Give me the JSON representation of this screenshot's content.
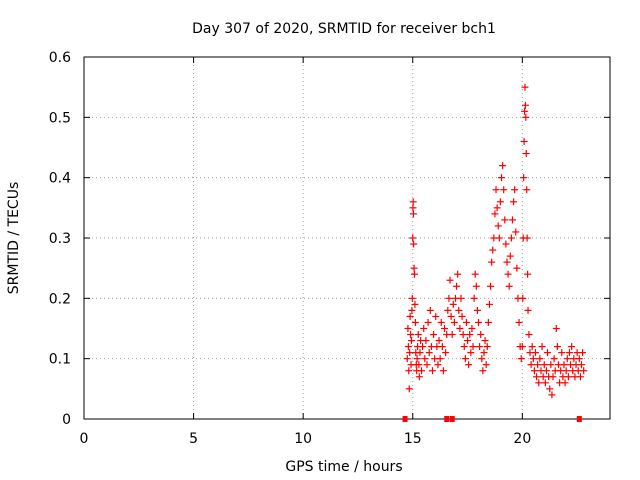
{
  "chart_data": {
    "type": "scatter",
    "title": "Day 307 of 2020, SRMTID for receiver bch1",
    "xlabel": "GPS time / hours",
    "ylabel": "SRMTID / TECUs",
    "xlim": [
      0,
      24
    ],
    "ylim": [
      0,
      0.6
    ],
    "x_ticks": [
      0,
      5,
      10,
      15,
      20
    ],
    "x_tick_labels": [
      "0",
      "5",
      "10",
      "15",
      "20"
    ],
    "y_ticks": [
      0,
      0.1,
      0.2,
      0.3,
      0.4,
      0.5,
      0.6
    ],
    "y_tick_labels": [
      "0",
      "0.1",
      "0.2",
      "0.3",
      "0.4",
      "0.5",
      "0.6"
    ],
    "grid": true,
    "marker": "+",
    "series": [
      {
        "name": "SRMTID",
        "color": "#ff0000",
        "points": [
          [
            14.75,
            0.1
          ],
          [
            14.78,
            0.15
          ],
          [
            14.8,
            0.12
          ],
          [
            14.82,
            0.08
          ],
          [
            14.84,
            0.05
          ],
          [
            14.86,
            0.11
          ],
          [
            14.88,
            0.17
          ],
          [
            14.9,
            0.14
          ],
          [
            14.92,
            0.09
          ],
          [
            14.94,
            0.13
          ],
          [
            14.96,
            0.18
          ],
          [
            14.98,
            0.2
          ],
          [
            15.0,
            0.3
          ],
          [
            15.01,
            0.35
          ],
          [
            15.02,
            0.36
          ],
          [
            15.03,
            0.34
          ],
          [
            15.04,
            0.29
          ],
          [
            15.06,
            0.25
          ],
          [
            15.08,
            0.24
          ],
          [
            15.1,
            0.19
          ],
          [
            15.12,
            0.16
          ],
          [
            15.14,
            0.11
          ],
          [
            15.16,
            0.09
          ],
          [
            15.18,
            0.08
          ],
          [
            15.2,
            0.1
          ],
          [
            15.22,
            0.12
          ],
          [
            15.25,
            0.14
          ],
          [
            15.28,
            0.09
          ],
          [
            15.3,
            0.07
          ],
          [
            15.33,
            0.11
          ],
          [
            15.36,
            0.13
          ],
          [
            15.4,
            0.08
          ],
          [
            15.45,
            0.12
          ],
          [
            15.5,
            0.15
          ],
          [
            15.55,
            0.1
          ],
          [
            15.6,
            0.13
          ],
          [
            15.65,
            0.09
          ],
          [
            15.7,
            0.16
          ],
          [
            15.75,
            0.11
          ],
          [
            15.8,
            0.18
          ],
          [
            15.85,
            0.12
          ],
          [
            15.9,
            0.08
          ],
          [
            15.95,
            0.14
          ],
          [
            16.0,
            0.1
          ],
          [
            16.05,
            0.17
          ],
          [
            16.1,
            0.12
          ],
          [
            16.15,
            0.09
          ],
          [
            16.2,
            0.13
          ],
          [
            16.25,
            0.1
          ],
          [
            16.3,
            0.16
          ],
          [
            16.35,
            0.12
          ],
          [
            16.4,
            0.08
          ],
          [
            16.45,
            0.15
          ],
          [
            16.5,
            0.11
          ],
          [
            16.55,
            0.14
          ],
          [
            16.6,
            0.18
          ],
          [
            16.65,
            0.2
          ],
          [
            16.7,
            0.23
          ],
          [
            16.75,
            0.17
          ],
          [
            16.8,
            0.14
          ],
          [
            16.85,
            0.19
          ],
          [
            16.9,
            0.16
          ],
          [
            16.95,
            0.2
          ],
          [
            17.0,
            0.22
          ],
          [
            17.05,
            0.24
          ],
          [
            17.1,
            0.18
          ],
          [
            17.15,
            0.15
          ],
          [
            17.2,
            0.2
          ],
          [
            17.25,
            0.17
          ],
          [
            17.3,
            0.14
          ],
          [
            17.35,
            0.12
          ],
          [
            17.4,
            0.1
          ],
          [
            17.45,
            0.16
          ],
          [
            17.5,
            0.13
          ],
          [
            17.55,
            0.09
          ],
          [
            17.6,
            0.14
          ],
          [
            17.65,
            0.11
          ],
          [
            17.7,
            0.15
          ],
          [
            17.75,
            0.12
          ],
          [
            17.8,
            0.2
          ],
          [
            17.85,
            0.24
          ],
          [
            17.9,
            0.22
          ],
          [
            17.95,
            0.18
          ],
          [
            18.0,
            0.16
          ],
          [
            18.05,
            0.12
          ],
          [
            18.1,
            0.14
          ],
          [
            18.15,
            0.1
          ],
          [
            18.2,
            0.08
          ],
          [
            18.25,
            0.11
          ],
          [
            18.3,
            0.13
          ],
          [
            18.35,
            0.09
          ],
          [
            18.4,
            0.12
          ],
          [
            18.45,
            0.16
          ],
          [
            18.5,
            0.19
          ],
          [
            18.55,
            0.22
          ],
          [
            18.6,
            0.26
          ],
          [
            18.65,
            0.28
          ],
          [
            18.7,
            0.3
          ],
          [
            18.75,
            0.34
          ],
          [
            18.8,
            0.38
          ],
          [
            18.85,
            0.35
          ],
          [
            18.9,
            0.32
          ],
          [
            18.95,
            0.3
          ],
          [
            19.0,
            0.36
          ],
          [
            19.05,
            0.4
          ],
          [
            19.1,
            0.42
          ],
          [
            19.15,
            0.38
          ],
          [
            19.2,
            0.33
          ],
          [
            19.25,
            0.29
          ],
          [
            19.3,
            0.26
          ],
          [
            19.35,
            0.24
          ],
          [
            19.4,
            0.22
          ],
          [
            19.45,
            0.27
          ],
          [
            19.5,
            0.3
          ],
          [
            19.55,
            0.33
          ],
          [
            19.6,
            0.36
          ],
          [
            19.65,
            0.38
          ],
          [
            19.7,
            0.31
          ],
          [
            19.75,
            0.25
          ],
          [
            19.8,
            0.2
          ],
          [
            19.85,
            0.16
          ],
          [
            19.9,
            0.12
          ],
          [
            19.95,
            0.1
          ],
          [
            20.0,
            0.12
          ],
          [
            20.02,
            0.2
          ],
          [
            20.04,
            0.3
          ],
          [
            20.06,
            0.4
          ],
          [
            20.08,
            0.46
          ],
          [
            20.1,
            0.51
          ],
          [
            20.12,
            0.55
          ],
          [
            20.14,
            0.52
          ],
          [
            20.16,
            0.5
          ],
          [
            20.18,
            0.44
          ],
          [
            20.2,
            0.38
          ],
          [
            20.22,
            0.3
          ],
          [
            20.24,
            0.24
          ],
          [
            20.26,
            0.18
          ],
          [
            20.3,
            0.14
          ],
          [
            20.35,
            0.11
          ],
          [
            20.4,
            0.09
          ],
          [
            20.45,
            0.12
          ],
          [
            20.5,
            0.1
          ],
          [
            20.55,
            0.08
          ],
          [
            20.6,
            0.11
          ],
          [
            20.65,
            0.07
          ],
          [
            20.7,
            0.09
          ],
          [
            20.75,
            0.06
          ],
          [
            20.8,
            0.1
          ],
          [
            20.85,
            0.08
          ],
          [
            20.9,
            0.12
          ],
          [
            20.95,
            0.07
          ],
          [
            21.0,
            0.09
          ],
          [
            21.05,
            0.06
          ],
          [
            21.1,
            0.08
          ],
          [
            21.15,
            0.11
          ],
          [
            21.2,
            0.07
          ],
          [
            21.25,
            0.05
          ],
          [
            21.3,
            0.09
          ],
          [
            21.35,
            0.04
          ],
          [
            21.4,
            0.07
          ],
          [
            21.45,
            0.1
          ],
          [
            21.5,
            0.08
          ],
          [
            21.55,
            0.15
          ],
          [
            21.6,
            0.12
          ],
          [
            21.65,
            0.09
          ],
          [
            21.7,
            0.06
          ],
          [
            21.75,
            0.08
          ],
          [
            21.8,
            0.11
          ],
          [
            21.85,
            0.07
          ],
          [
            21.9,
            0.09
          ],
          [
            21.95,
            0.06
          ],
          [
            22.0,
            0.08
          ],
          [
            22.05,
            0.1
          ],
          [
            22.1,
            0.07
          ],
          [
            22.15,
            0.11
          ],
          [
            22.2,
            0.09
          ],
          [
            22.25,
            0.12
          ],
          [
            22.3,
            0.08
          ],
          [
            22.35,
            0.1
          ],
          [
            22.4,
            0.07
          ],
          [
            22.45,
            0.09
          ],
          [
            22.5,
            0.11
          ],
          [
            22.55,
            0.08
          ],
          [
            22.6,
            0.1
          ],
          [
            22.65,
            0.07
          ],
          [
            22.7,
            0.09
          ],
          [
            22.75,
            0.11
          ],
          [
            22.8,
            0.08
          ]
        ]
      }
    ],
    "baseline_markers_x": [
      14.65,
      16.55,
      16.8,
      22.6
    ]
  }
}
